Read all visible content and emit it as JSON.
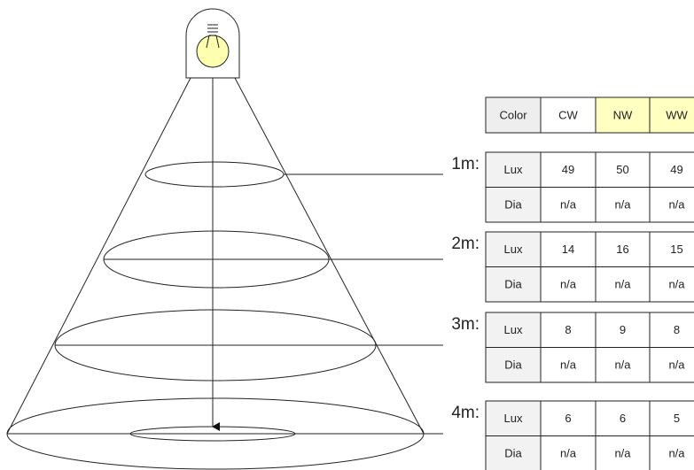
{
  "table": {
    "header": [
      "Color",
      "CW",
      "NW",
      "WW"
    ],
    "groups": [
      {
        "level": "1m:",
        "rows": [
          [
            "Lux",
            "49",
            "50",
            "49"
          ],
          [
            "Dia",
            "n/a",
            "n/a",
            "n/a"
          ]
        ]
      },
      {
        "level": "2m:",
        "rows": [
          [
            "Lux",
            "14",
            "16",
            "15"
          ],
          [
            "Dia",
            "n/a",
            "n/a",
            "n/a"
          ]
        ]
      },
      {
        "level": "3m:",
        "rows": [
          [
            "Lux",
            "8",
            "9",
            "8"
          ],
          [
            "Dia",
            "n/a",
            "n/a",
            "n/a"
          ]
        ]
      },
      {
        "level": "4m:",
        "rows": [
          [
            "Lux",
            "6",
            "6",
            "5"
          ],
          [
            "Dia",
            "n/a",
            "n/a",
            "n/a"
          ]
        ]
      }
    ]
  }
}
